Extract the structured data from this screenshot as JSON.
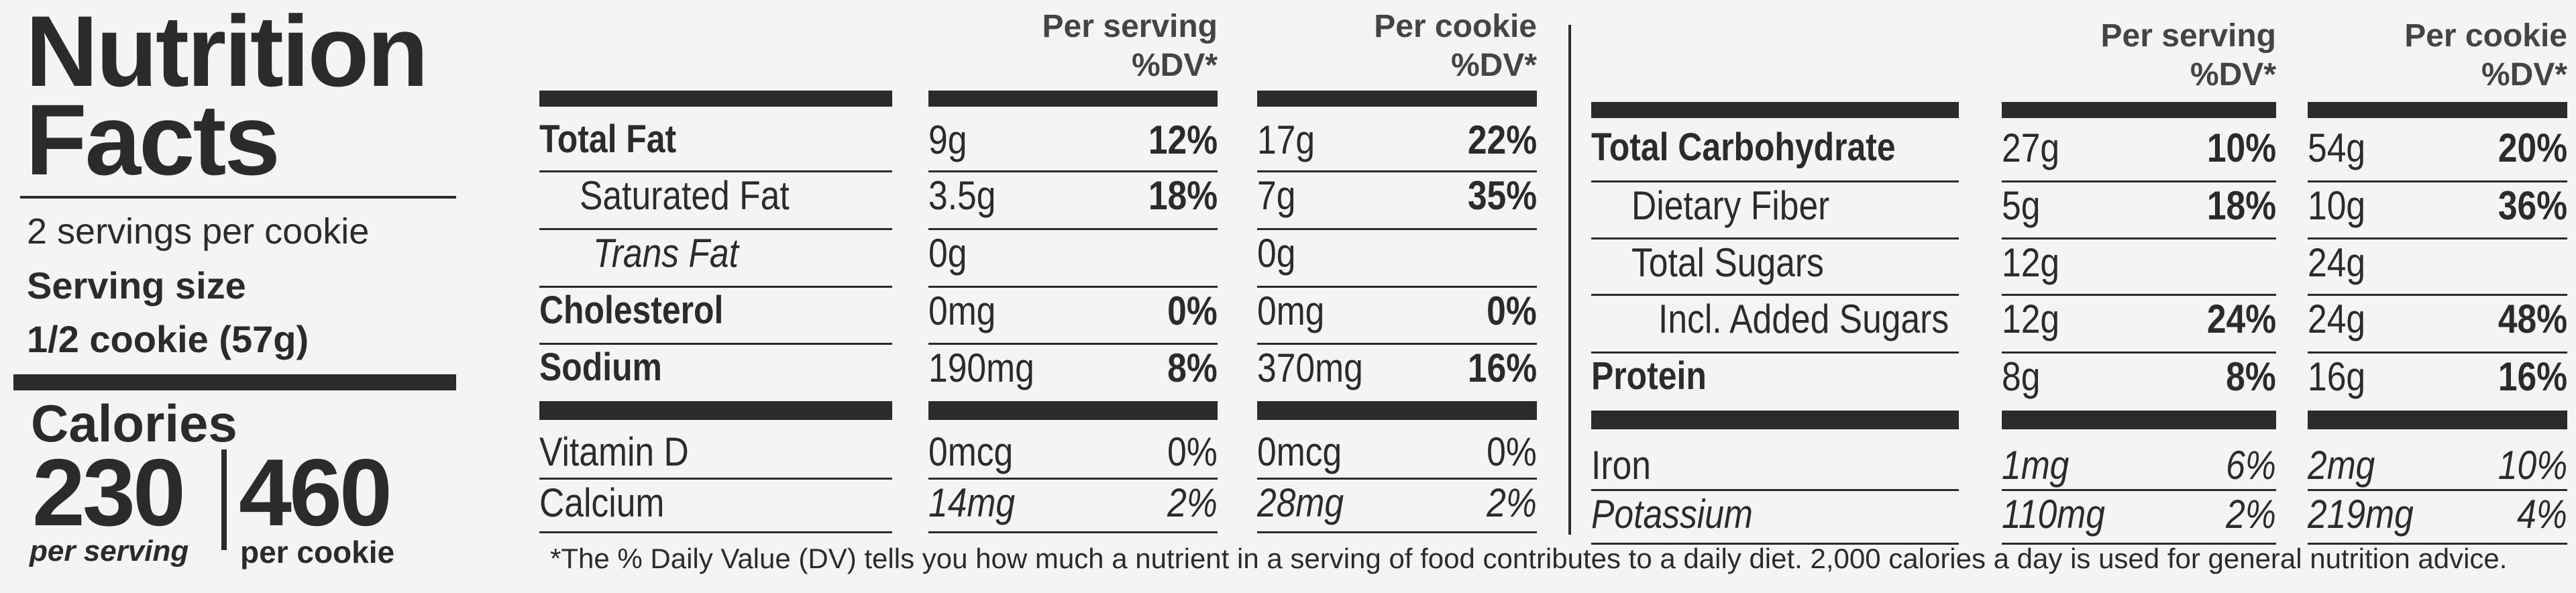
{
  "title": "Nutrition Facts",
  "servings_per_cookie": "2 servings per cookie",
  "serving_size": {
    "label": "Serving size",
    "value": "1/2 cookie (57g)"
  },
  "calories": {
    "label": "Calories",
    "columns": [
      {
        "amount": "230",
        "label": "per serving"
      },
      {
        "amount": "460",
        "label": "per cookie"
      }
    ]
  },
  "columns": [
    {
      "line1": "Per serving",
      "line2": "%DV*"
    },
    {
      "line1": "Per cookie",
      "line2": "%DV*"
    }
  ],
  "tables": [
    {
      "rows": [
        [
          "Total Fat",
          "9g",
          "12%",
          "17g",
          "22%"
        ],
        [
          "Saturated Fat",
          "3.5g",
          "18%",
          "7g",
          "35%"
        ],
        [
          "Trans Fat",
          "0g",
          null,
          "0g",
          null
        ],
        [
          "Cholesterol",
          "0mg",
          "0%",
          "0mg",
          "0%"
        ],
        [
          "Sodium",
          "190mg",
          "8%",
          "370mg",
          "16%"
        ],
        [
          "Vitamin D",
          "0mcg",
          "0%",
          "0mcg",
          "0%"
        ],
        [
          "Calcium",
          "14mg",
          "2%",
          "28mg",
          "2%"
        ]
      ]
    },
    {
      "rows": [
        [
          "Total Carbohydrate",
          "27g",
          "10%",
          "54g",
          "20%"
        ],
        [
          "Dietary Fiber",
          "5g",
          "18%",
          "10g",
          "36%"
        ],
        [
          "Total Sugars",
          "12g",
          null,
          "24g",
          null
        ],
        [
          "Incl. Added Sugars",
          "12g",
          "24%",
          "24g",
          "48%"
        ],
        [
          "Protein",
          "8g",
          "8%",
          "16g",
          "16%"
        ],
        [
          "Iron",
          "1mg",
          "6%",
          "2mg",
          "10%"
        ],
        [
          "Potassium",
          "110mg",
          "2%",
          "219mg",
          "4%"
        ]
      ]
    }
  ],
  "footnote": "*The % Daily Value (DV) tells you how much a nutrient in a serving of food contributes to a daily diet. 2,000 calories a day is used for general nutrition advice."
}
